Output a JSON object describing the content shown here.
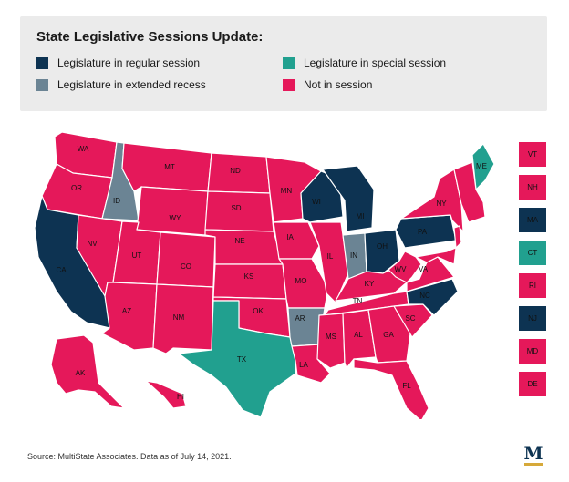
{
  "title": "State Legislative Sessions Update:",
  "legend": [
    {
      "key": "regular",
      "label": "Legislature in regular session",
      "color": "#0d3352"
    },
    {
      "key": "recess",
      "label": "Legislature in extended recess",
      "color": "#6b8494"
    },
    {
      "key": "special",
      "label": "Legislature in special session",
      "color": "#21a08f"
    },
    {
      "key": "not",
      "label": "Not in session",
      "color": "#e5185a"
    }
  ],
  "states": [
    {
      "abbr": "WA",
      "status": "not"
    },
    {
      "abbr": "OR",
      "status": "not"
    },
    {
      "abbr": "CA",
      "status": "regular"
    },
    {
      "abbr": "ID",
      "status": "recess"
    },
    {
      "abbr": "NV",
      "status": "not"
    },
    {
      "abbr": "MT",
      "status": "not"
    },
    {
      "abbr": "WY",
      "status": "not"
    },
    {
      "abbr": "UT",
      "status": "not"
    },
    {
      "abbr": "AZ",
      "status": "not"
    },
    {
      "abbr": "CO",
      "status": "not"
    },
    {
      "abbr": "NM",
      "status": "not"
    },
    {
      "abbr": "ND",
      "status": "not"
    },
    {
      "abbr": "SD",
      "status": "not"
    },
    {
      "abbr": "NE",
      "status": "not"
    },
    {
      "abbr": "KS",
      "status": "not"
    },
    {
      "abbr": "OK",
      "status": "not"
    },
    {
      "abbr": "TX",
      "status": "special"
    },
    {
      "abbr": "MN",
      "status": "not"
    },
    {
      "abbr": "IA",
      "status": "not"
    },
    {
      "abbr": "MO",
      "status": "not"
    },
    {
      "abbr": "AR",
      "status": "recess"
    },
    {
      "abbr": "LA",
      "status": "not"
    },
    {
      "abbr": "WI",
      "status": "regular"
    },
    {
      "abbr": "IL",
      "status": "not"
    },
    {
      "abbr": "MI",
      "status": "regular"
    },
    {
      "abbr": "IN",
      "status": "recess"
    },
    {
      "abbr": "OH",
      "status": "regular"
    },
    {
      "abbr": "KY",
      "status": "not"
    },
    {
      "abbr": "TN",
      "status": "not"
    },
    {
      "abbr": "MS",
      "status": "not"
    },
    {
      "abbr": "AL",
      "status": "not"
    },
    {
      "abbr": "GA",
      "status": "not"
    },
    {
      "abbr": "FL",
      "status": "not"
    },
    {
      "abbr": "SC",
      "status": "not"
    },
    {
      "abbr": "NC",
      "status": "regular"
    },
    {
      "abbr": "VA",
      "status": "not"
    },
    {
      "abbr": "WV",
      "status": "not"
    },
    {
      "abbr": "PA",
      "status": "regular"
    },
    {
      "abbr": "NY",
      "status": "not"
    },
    {
      "abbr": "ME",
      "status": "special"
    },
    {
      "abbr": "AK",
      "status": "not"
    },
    {
      "abbr": "HI",
      "status": "not"
    }
  ],
  "northeast_boxes": [
    {
      "abbr": "VT",
      "status": "not"
    },
    {
      "abbr": "NH",
      "status": "not"
    },
    {
      "abbr": "MA",
      "status": "regular"
    },
    {
      "abbr": "CT",
      "status": "special"
    },
    {
      "abbr": "RI",
      "status": "not"
    },
    {
      "abbr": "NJ",
      "status": "regular"
    },
    {
      "abbr": "MD",
      "status": "not"
    },
    {
      "abbr": "DE",
      "status": "not"
    }
  ],
  "source": "Source: MultiState Associates. Data as of July 14, 2021.",
  "logo_letter": "M"
}
